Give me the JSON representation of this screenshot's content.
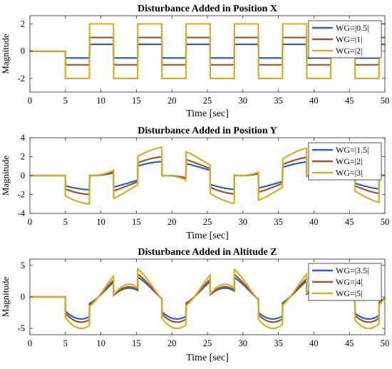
{
  "colors": {
    "series1": "#2E5CC8",
    "series2": "#A0522D",
    "series3": "#D4B020"
  },
  "chart_data": [
    {
      "type": "line",
      "title": "Disturbance Added in Position X",
      "xlabel": "Time [sec]",
      "ylabel": "Magnitude",
      "xlim": [
        0,
        50
      ],
      "ylim": [
        -3,
        2.6
      ],
      "xticks": [
        0,
        5,
        10,
        15,
        20,
        25,
        30,
        35,
        40,
        45,
        50
      ],
      "yticks": [
        -2,
        0,
        2
      ],
      "legend_position": "top-right",
      "grid": false,
      "series": [
        {
          "name": "WG=|0.5|",
          "waveform": "square",
          "amplitude": 0.5
        },
        {
          "name": "WG=|1|",
          "waveform": "square",
          "amplitude": 1
        },
        {
          "name": "WG=|2|",
          "waveform": "square",
          "amplitude": 2
        }
      ],
      "signal": {
        "start_time": 5,
        "period": 6.8,
        "initial_value": 0
      }
    },
    {
      "type": "line",
      "title": "Disturbance Added in Position Y",
      "xlabel": "Time [sec]",
      "ylabel": "Magnitude",
      "xlim": [
        0,
        50
      ],
      "ylim": [
        -4,
        4
      ],
      "xticks": [
        0,
        5,
        10,
        15,
        20,
        25,
        30,
        35,
        40,
        45,
        50
      ],
      "yticks": [
        -4,
        -2,
        0,
        2,
        4
      ],
      "legend_position": "top-right",
      "grid": false,
      "series": [
        {
          "name": "WG=|1.5|",
          "waveform": "square plus sine",
          "amplitude": 1.5
        },
        {
          "name": "WG=|2|",
          "waveform": "square plus sine",
          "amplitude": 2
        },
        {
          "name": "WG=|3|",
          "waveform": "square plus sine",
          "amplitude": 3
        }
      ],
      "signal": {
        "start_time": 5,
        "period": 6.8,
        "sine_period": 21,
        "initial_value": 0
      }
    },
    {
      "type": "line",
      "title": "Disturbance Added in Altitude Z",
      "xlabel": "Time [sec]",
      "ylabel": "Magnitude",
      "xlim": [
        0,
        50
      ],
      "ylim": [
        -6,
        6
      ],
      "xticks": [
        0,
        5,
        10,
        15,
        20,
        25,
        30,
        35,
        40,
        45,
        50
      ],
      "yticks": [
        -5,
        0,
        5
      ],
      "legend_position": "top-right",
      "grid": false,
      "series": [
        {
          "name": "WG=|3.5|",
          "waveform": "sine plus square",
          "amplitude": 3.5
        },
        {
          "name": "WG=|4|",
          "waveform": "sine plus square",
          "amplitude": 4
        },
        {
          "name": "WG=|5|",
          "waveform": "sine plus square",
          "amplitude": 5
        }
      ],
      "signal": {
        "start_time": 5,
        "period": 6.8,
        "sine_period": 13.5,
        "initial_value": 0
      }
    }
  ]
}
